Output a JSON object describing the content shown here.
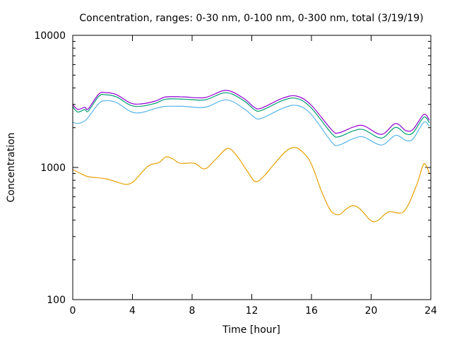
{
  "chart_data": {
    "type": "line",
    "title": "Concentration, ranges: 0-30 nm, 0-100 nm, 0-300 nm, total (3/19/19)",
    "xlabel": "Time [hour]",
    "ylabel": "Concentration",
    "xlim": [
      0,
      24
    ],
    "ylim": [
      100,
      10000
    ],
    "yscale": "log",
    "xticks": [
      "0",
      "4",
      "8",
      "12",
      "16",
      "20",
      "24"
    ],
    "yticks": [
      "100",
      "1000",
      "10000"
    ],
    "grid": false,
    "legend": "none",
    "series": [
      {
        "name": "total",
        "color": "#9400d3",
        "x": [
          0,
          0.33,
          0.8,
          1.04,
          1.75,
          2.22,
          2.93,
          3.88,
          4.59,
          5.54,
          6.25,
          7.43,
          8.85,
          10.27,
          11.45,
          12.17,
          12.64,
          14.06,
          15.0,
          15.95,
          17.37,
          17.85,
          18.79,
          19.5,
          20.69,
          21.63,
          22.34,
          22.82,
          23.53,
          23.9
        ],
        "y": [
          2990,
          2750,
          2850,
          2780,
          3600,
          3690,
          3560,
          3070,
          3030,
          3180,
          3420,
          3420,
          3380,
          3830,
          3340,
          2850,
          2810,
          3340,
          3470,
          2990,
          1920,
          1830,
          2020,
          2070,
          1780,
          2150,
          1900,
          1950,
          2520,
          2280
        ]
      },
      {
        "name": "0-300 nm",
        "color": "#009e73",
        "x": [
          0,
          0.33,
          0.8,
          1.04,
          1.75,
          2.22,
          2.93,
          3.88,
          4.59,
          5.54,
          6.25,
          7.43,
          8.85,
          10.27,
          11.45,
          12.17,
          12.64,
          14.06,
          15.0,
          15.95,
          17.37,
          17.85,
          18.79,
          19.5,
          20.69,
          21.63,
          22.34,
          22.82,
          23.53,
          23.9
        ],
        "y": [
          2880,
          2630,
          2740,
          2670,
          3460,
          3550,
          3420,
          2950,
          2910,
          3060,
          3290,
          3290,
          3250,
          3680,
          3210,
          2740,
          2700,
          3210,
          3330,
          2850,
          1800,
          1710,
          1890,
          1930,
          1670,
          2010,
          1790,
          1840,
          2400,
          2180
        ]
      },
      {
        "name": "0-100 nm",
        "color": "#56b4e9",
        "x": [
          0,
          0.33,
          0.8,
          1.04,
          1.75,
          2.22,
          2.93,
          3.88,
          4.59,
          5.54,
          6.25,
          7.43,
          8.85,
          10.27,
          11.45,
          12.17,
          12.64,
          14.06,
          15.0,
          15.95,
          17.37,
          17.85,
          18.79,
          19.5,
          20.69,
          21.63,
          22.34,
          22.82,
          23.53,
          23.9
        ],
        "y": [
          2200,
          2150,
          2250,
          2400,
          3050,
          3200,
          3100,
          2650,
          2600,
          2800,
          2900,
          2900,
          2850,
          3250,
          2800,
          2400,
          2350,
          2800,
          2950,
          2550,
          1550,
          1480,
          1650,
          1700,
          1480,
          1750,
          1600,
          1650,
          2200,
          2050
        ]
      },
      {
        "name": "0-30 nm",
        "color": "#e69f00",
        "x": [
          0,
          0.57,
          1.04,
          2.22,
          3.17,
          3.64,
          4.12,
          5.06,
          5.77,
          6.25,
          6.72,
          7.19,
          8.14,
          8.85,
          9.56,
          10.37,
          10.98,
          11.69,
          12.26,
          12.87,
          13.58,
          14.29,
          14.77,
          15.24,
          15.95,
          16.66,
          17.28,
          17.85,
          18.32,
          18.79,
          19.27,
          19.97,
          20.45,
          21.16,
          22.2,
          23.05,
          23.53,
          23.9
        ],
        "y": [
          964,
          896,
          852,
          821,
          762,
          745,
          791,
          1025,
          1089,
          1202,
          1159,
          1076,
          1076,
          976,
          1146,
          1393,
          1233,
          940,
          782,
          873,
          1089,
          1327,
          1413,
          1361,
          1089,
          667,
          473,
          439,
          484,
          514,
          484,
          397,
          397,
          461,
          466,
          735,
          1064,
          906
        ]
      }
    ]
  }
}
